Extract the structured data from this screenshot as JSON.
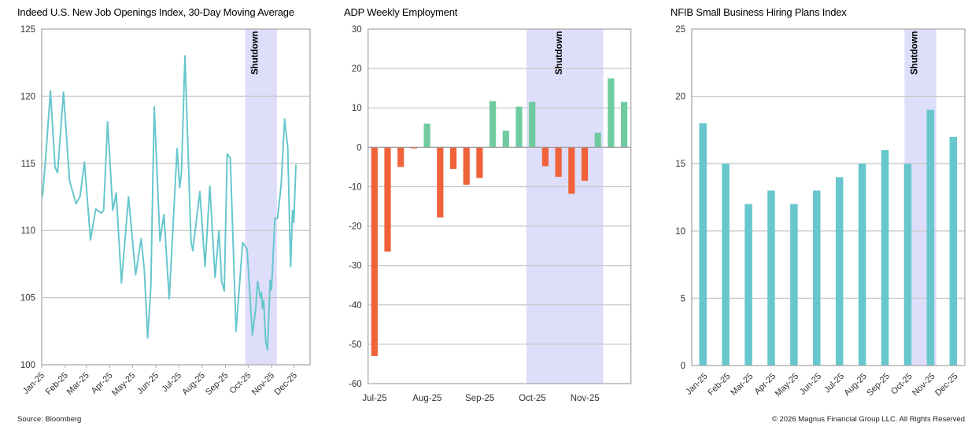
{
  "colors": {
    "line": "#67c7cd",
    "positive": "#6fcb9f",
    "negative": "#f0623a",
    "bar": "#67c7cd",
    "shading": "#dedefb",
    "grid": "#c8c8c8"
  },
  "footer": {
    "source": "Source: Bloomberg",
    "copyright": "© 2026 Magnus Financial Group LLC. All Rights Reserved"
  },
  "chart_data": [
    {
      "type": "line",
      "title": "Indeed U.S. New Job Openings Index, 30-Day Moving Average",
      "ylim": [
        100,
        125
      ],
      "yticks": [
        "100",
        "105",
        "110",
        "115",
        "120",
        "125"
      ],
      "xticks": [
        "Jan-25",
        "Feb-25",
        "Mar-25",
        "Apr-25",
        "May-25",
        "Jun-25",
        "Jul-25",
        "Aug-25",
        "Sep-25",
        "Oct-25",
        "Nov-25",
        "Dec-25"
      ],
      "xtick_days": [
        0,
        31,
        59,
        90,
        120,
        151,
        181,
        212,
        243,
        273,
        304,
        334
      ],
      "shading": {
        "label": "Shutdown",
        "from_day": 269,
        "to_day": 311
      },
      "grid": true,
      "series": [
        {
          "name": "Indeed Job Openings Index",
          "x_day": [
            1,
            5.5,
            11.5,
            17.7,
            21,
            28.8,
            36.8,
            45.4,
            50.6,
            56.5,
            64.5,
            71.5,
            78.4,
            81.9,
            87.1,
            94,
            98.5,
            105.4,
            114.8,
            124.2,
            131.5,
            135.6,
            140.1,
            144.3,
            148.8,
            156.4,
            161.6,
            168.6,
            179,
            182.4,
            184.8,
            189.4,
            197.4,
            199.8,
            209.1,
            216,
            222.3,
            229.2,
            234.4,
            237.9,
            241.4,
            245.2,
            249.3,
            257,
            265.7,
            271.6,
            278.6,
            283,
            285.5,
            289,
            290.6,
            291.7,
            293.5,
            296.2,
            298.6,
            302,
            303.8,
            308.3,
            311.8,
            316.6,
            321.2,
            325.3,
            329.1,
            331.7,
            333.3,
            336.1
          ],
          "values": [
            112.5,
            115.6,
            120.4,
            114.7,
            114.3,
            120.3,
            113.7,
            112.0,
            112.5,
            115.1,
            109.3,
            111.6,
            111.3,
            111.5,
            118.1,
            111.5,
            112.8,
            106.1,
            112.5,
            106.7,
            109.4,
            107.1,
            102.0,
            105.8,
            119.2,
            109.2,
            111.2,
            104.9,
            116.1,
            113.2,
            114.3,
            123.0,
            109.2,
            108.5,
            112.9,
            107.3,
            113.3,
            106.5,
            110.0,
            106.2,
            105.5,
            115.7,
            115.4,
            102.5,
            109.1,
            108.6,
            102.2,
            104.2,
            106.2,
            105.0,
            105.4,
            104.2,
            104.8,
            101.7,
            101.1,
            106.3,
            105.6,
            110.9,
            110.9,
            113.4,
            118.3,
            116.2,
            107.3,
            111.5,
            110.6,
            114.9
          ]
        }
      ]
    },
    {
      "type": "bar",
      "title": "ADP Weekly Employment",
      "ylim": [
        -60,
        30
      ],
      "yticks": [
        "-60",
        "-50",
        "-40",
        "-30",
        "-20",
        "-10",
        "0",
        "10",
        "20",
        "30"
      ],
      "xticks": [
        {
          "label": "Jul-25",
          "index": 0
        },
        {
          "label": "Aug-25",
          "index": 4
        },
        {
          "label": "Sep-25",
          "index": 8
        },
        {
          "label": "Oct-25",
          "index": 12
        },
        {
          "label": "Nov-25",
          "index": 16
        }
      ],
      "shading": {
        "label": "Shutdown",
        "from_index": 12.05,
        "to_index": 17.9
      },
      "grid": true,
      "values": [
        -53,
        -26.5,
        -5,
        -0.3,
        6,
        -17.8,
        -5.5,
        -9.5,
        -7.8,
        11.7,
        4.2,
        10.3,
        11.5,
        -4.8,
        -7.5,
        -11.8,
        -8.5,
        3.7,
        17.5,
        11.5
      ]
    },
    {
      "type": "bar",
      "title": "NFIB Small Business Hiring Plans Index",
      "ylim": [
        0,
        25
      ],
      "yticks": [
        "0",
        "5",
        "10",
        "15",
        "20",
        "25"
      ],
      "categories": [
        "Jan-25",
        "Feb-25",
        "Mar-25",
        "Apr-25",
        "May-25",
        "Jun-25",
        "Jul-25",
        "Aug-25",
        "Sep-25",
        "Oct-25",
        "Nov-25",
        "Dec-25"
      ],
      "shading": {
        "label": "Shutdown",
        "from_index": 9.35,
        "to_index": 10.75
      },
      "grid": true,
      "values": [
        18,
        15,
        12,
        13,
        12,
        13,
        14,
        15,
        16,
        15,
        19,
        17
      ]
    }
  ]
}
